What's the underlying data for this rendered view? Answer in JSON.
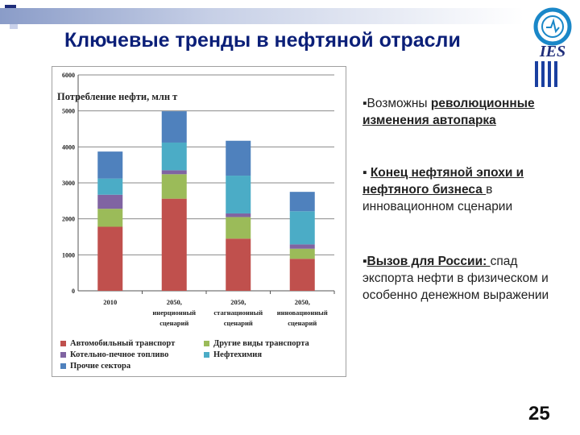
{
  "slide": {
    "title": "Ключевые тренды в нефтяной отрасли",
    "page_number": "25",
    "logo_text": "IES"
  },
  "bullets": [
    {
      "marker": "▪",
      "strong": "Возможны ",
      "strong_ul": "революционные изменения автопарка",
      "rest": ""
    },
    {
      "marker": "▪ ",
      "strong": "",
      "strong_ul": "Конец нефтяной эпохи и нефтяного бизнеса ",
      "rest": "в инновационном сценарии"
    },
    {
      "marker": "▪",
      "strong": "",
      "strong_ul": "Вызов для России: ",
      "rest": " спад экспорта нефти в физическом и особенно денежном выражении"
    }
  ],
  "chart_data": {
    "type": "bar",
    "stacked": true,
    "inner_title": "Потребление нефти, млн т",
    "ylim": [
      0,
      6000
    ],
    "yticks": [
      0,
      1000,
      2000,
      3000,
      4000,
      5000,
      6000
    ],
    "categories": [
      [
        "2010"
      ],
      [
        "2050,",
        "инерционный",
        "сценарий"
      ],
      [
        "2050,",
        "стагнационный",
        "сценарий"
      ],
      [
        "2050,",
        "инновационный",
        "сценарий"
      ]
    ],
    "series": [
      {
        "name": "Автомобильный транспорт",
        "color": "#c0504d",
        "values": [
          1780,
          2560,
          1450,
          890
        ]
      },
      {
        "name": "Другие виды транспорта",
        "color": "#9bbb59",
        "values": [
          500,
          680,
          600,
          280
        ]
      },
      {
        "name": "Котельно-печное топливо",
        "color": "#8064a2",
        "values": [
          390,
          110,
          100,
          120
        ]
      },
      {
        "name": "Нефтехимия",
        "color": "#4bacc6",
        "values": [
          450,
          770,
          1050,
          920
        ]
      },
      {
        "name": "Прочие сектора",
        "color": "#4f81bd",
        "values": [
          750,
          870,
          970,
          540
        ]
      }
    ],
    "grid": true,
    "legend_position": "bottom"
  }
}
